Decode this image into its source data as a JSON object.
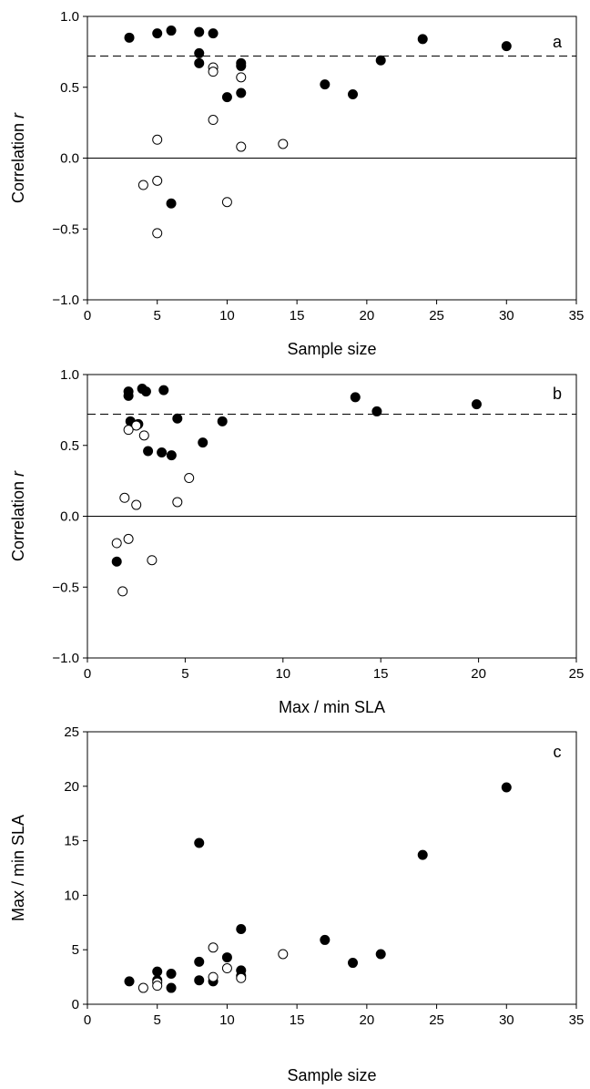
{
  "chart_data": [
    {
      "type": "scatter",
      "panel_label": "a",
      "xlabel": "Sample size",
      "ylabel": "Correlation",
      "ylabel_italic": "r",
      "xlim": [
        0,
        35
      ],
      "ylim": [
        -1.0,
        1.0
      ],
      "xticks": [
        "0",
        "5",
        "10",
        "15",
        "20",
        "25",
        "30",
        "35"
      ],
      "yticks": [
        "-1.0",
        "-0.5",
        "0.0",
        "0.5",
        "1.0"
      ],
      "reference_lines": [
        {
          "y": 0.72,
          "style": "dashed"
        },
        {
          "y": 0.0,
          "style": "solid"
        }
      ],
      "series": [
        {
          "fill": "filled",
          "points": [
            [
              3,
              0.85
            ],
            [
              5,
              0.88
            ],
            [
              6,
              0.9
            ],
            [
              8,
              0.89
            ],
            [
              9,
              0.88
            ],
            [
              8,
              0.74
            ],
            [
              8,
              0.67
            ],
            [
              11,
              0.67
            ],
            [
              11,
              0.65
            ],
            [
              10,
              0.43
            ],
            [
              11,
              0.46
            ],
            [
              17,
              0.52
            ],
            [
              19,
              0.45
            ],
            [
              21,
              0.69
            ],
            [
              24,
              0.84
            ],
            [
              30,
              0.79
            ],
            [
              6,
              -0.32
            ]
          ]
        },
        {
          "fill": "open",
          "points": [
            [
              9,
              0.64
            ],
            [
              9,
              0.61
            ],
            [
              11,
              0.57
            ],
            [
              9,
              0.27
            ],
            [
              5,
              0.13
            ],
            [
              11,
              0.08
            ],
            [
              14,
              0.1
            ],
            [
              4,
              -0.19
            ],
            [
              5,
              -0.16
            ],
            [
              10,
              -0.31
            ],
            [
              5,
              -0.53
            ]
          ]
        }
      ]
    },
    {
      "type": "scatter",
      "panel_label": "b",
      "xlabel": "Max / min SLA",
      "ylabel": "Correlation",
      "ylabel_italic": "r",
      "xlim": [
        0,
        25
      ],
      "ylim": [
        -1.0,
        1.0
      ],
      "xticks": [
        "0",
        "5",
        "10",
        "15",
        "20",
        "25"
      ],
      "yticks": [
        "-1.0",
        "-0.5",
        "0.0",
        "0.5",
        "1.0"
      ],
      "reference_lines": [
        {
          "y": 0.72,
          "style": "dashed"
        },
        {
          "y": 0.0,
          "style": "solid"
        }
      ],
      "series": [
        {
          "fill": "filled",
          "points": [
            [
              2.1,
              0.88
            ],
            [
              2.1,
              0.85
            ],
            [
              2.8,
              0.9
            ],
            [
              3.0,
              0.88
            ],
            [
              3.9,
              0.89
            ],
            [
              2.2,
              0.67
            ],
            [
              2.6,
              0.65
            ],
            [
              3.1,
              0.46
            ],
            [
              3.8,
              0.45
            ],
            [
              4.3,
              0.43
            ],
            [
              4.6,
              0.69
            ],
            [
              5.9,
              0.52
            ],
            [
              6.9,
              0.67
            ],
            [
              13.7,
              0.84
            ],
            [
              14.8,
              0.74
            ],
            [
              19.9,
              0.79
            ],
            [
              1.5,
              -0.32
            ]
          ]
        },
        {
          "fill": "open",
          "points": [
            [
              2.5,
              0.64
            ],
            [
              2.1,
              0.61
            ],
            [
              2.9,
              0.57
            ],
            [
              5.2,
              0.27
            ],
            [
              1.9,
              0.13
            ],
            [
              2.5,
              0.08
            ],
            [
              4.6,
              0.1
            ],
            [
              1.5,
              -0.19
            ],
            [
              2.1,
              -0.16
            ],
            [
              3.3,
              -0.31
            ],
            [
              1.8,
              -0.53
            ]
          ]
        }
      ]
    },
    {
      "type": "scatter",
      "panel_label": "c",
      "xlabel": "Sample size",
      "ylabel": "Max / min SLA",
      "ylabel_italic": "",
      "xlim": [
        0,
        35
      ],
      "ylim": [
        0,
        25
      ],
      "xticks": [
        "0",
        "5",
        "10",
        "15",
        "20",
        "25",
        "30",
        "35"
      ],
      "yticks": [
        "0",
        "5",
        "10",
        "15",
        "20",
        "25"
      ],
      "reference_lines": [],
      "series": [
        {
          "fill": "filled",
          "points": [
            [
              3,
              2.1
            ],
            [
              5,
              3.0
            ],
            [
              5,
              2.2
            ],
            [
              6,
              2.8
            ],
            [
              6,
              1.5
            ],
            [
              8,
              14.8
            ],
            [
              8,
              3.9
            ],
            [
              8,
              2.2
            ],
            [
              9,
              2.1
            ],
            [
              10,
              4.3
            ],
            [
              11,
              6.9
            ],
            [
              11,
              3.1
            ],
            [
              11,
              2.6
            ],
            [
              17,
              5.9
            ],
            [
              19,
              3.8
            ],
            [
              21,
              4.6
            ],
            [
              24,
              13.7
            ],
            [
              30,
              19.9
            ]
          ]
        },
        {
          "fill": "open",
          "points": [
            [
              4,
              1.5
            ],
            [
              5,
              2.0
            ],
            [
              5,
              1.7
            ],
            [
              9,
              5.2
            ],
            [
              9,
              2.5
            ],
            [
              10,
              3.3
            ],
            [
              11,
              2.4
            ],
            [
              14,
              4.6
            ]
          ]
        }
      ]
    }
  ]
}
